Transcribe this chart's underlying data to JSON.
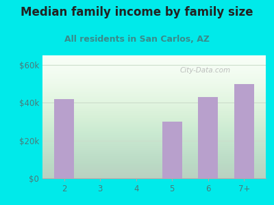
{
  "title": "Median family income by family size",
  "subtitle": "All residents in San Carlos, AZ",
  "categories": [
    "2",
    "3",
    "4",
    "5",
    "6",
    "7+"
  ],
  "values": [
    42000,
    0,
    0,
    30000,
    43000,
    50000
  ],
  "bar_color": "#b8a0cc",
  "background_color": "#00eaea",
  "title_color": "#222222",
  "subtitle_color": "#3a8a8a",
  "tick_color": "#4a7a7a",
  "yticks": [
    0,
    20000,
    40000,
    60000
  ],
  "ytick_labels": [
    "$0",
    "$20k",
    "$40k",
    "$60k"
  ],
  "ylim": [
    0,
    65000
  ],
  "watermark": "City-Data.com",
  "title_fontsize": 12,
  "subtitle_fontsize": 9,
  "grid_color": "#ccddcc",
  "plot_bg_color_top": "#e8f5e0",
  "plot_bg_color_bottom": "#f8fff8"
}
